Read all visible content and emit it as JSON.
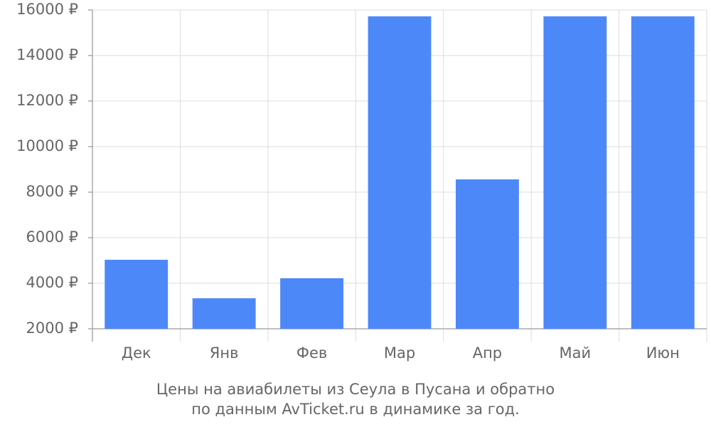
{
  "chart_data": {
    "type": "bar",
    "title": [
      "Цены на авиабилеты из Сеула в Пусана и обратно",
      "по данным AvTicket.ru в динамике за год."
    ],
    "categories": [
      "Дек",
      "Янв",
      "Фев",
      "Мар",
      "Апр",
      "Май",
      "Июн"
    ],
    "values": [
      5030,
      3340,
      4220,
      15720,
      8560,
      15720,
      15720
    ],
    "color": "#4d88f9",
    "ylim": [
      2000,
      16000
    ],
    "yticks": [
      {
        "value": 2000,
        "label": "2000 ₽"
      },
      {
        "value": 4000,
        "label": "4000 ₽"
      },
      {
        "value": 6000,
        "label": "6000 ₽"
      },
      {
        "value": 8000,
        "label": "8000 ₽"
      },
      {
        "value": 10000,
        "label": "10000 ₽"
      },
      {
        "value": 12000,
        "label": "12000 ₽"
      },
      {
        "value": 14000,
        "label": "14000 ₽"
      },
      {
        "value": 16000,
        "label": "16000 ₽"
      }
    ],
    "grid": true
  }
}
